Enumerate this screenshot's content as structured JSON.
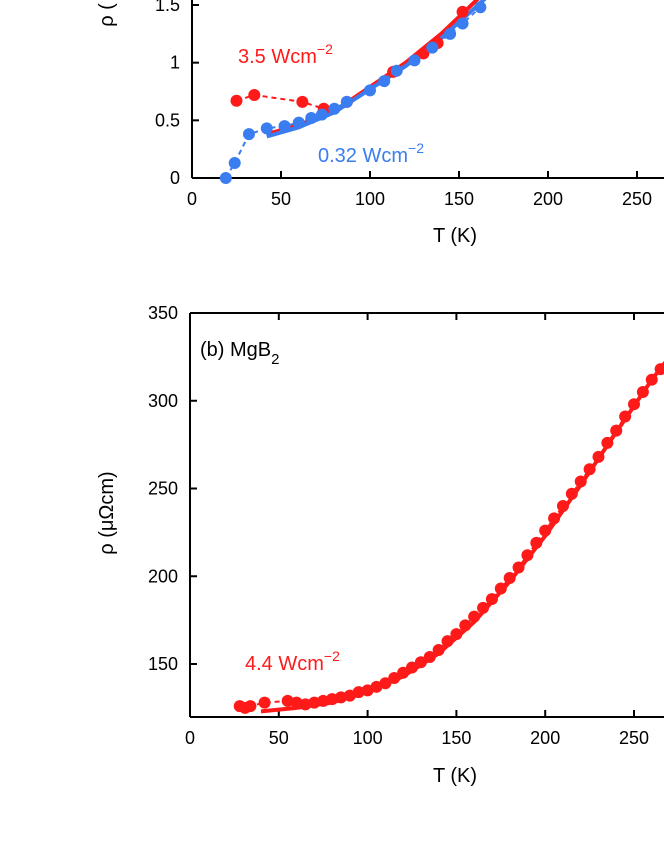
{
  "colors": {
    "axis": "#000000",
    "red": "#ff1a1a",
    "blue": "#3a7df0"
  },
  "chart_data": [
    {
      "type": "scatter",
      "panel": "a",
      "title": "",
      "xlabel": "T (K)",
      "ylabel": "ρ (",
      "xlim": [
        0,
        260
      ],
      "ylim": [
        0,
        1.5
      ],
      "x_ticks": [
        0,
        50,
        100,
        150,
        200,
        250
      ],
      "x_tick_labels": [
        "0",
        "50",
        "100",
        "150",
        "200",
        "250"
      ],
      "y_ticks": [
        0,
        0.5,
        1,
        1.5
      ],
      "y_tick_labels": [
        "0",
        "0.5",
        "1",
        "1.5"
      ],
      "series": [
        {
          "name": "3.5 Wcm−2",
          "label_main": "3.5 Wcm",
          "label_sup": "−2",
          "color": "red",
          "x": [
            25,
            35,
            62,
            74,
            87,
            113,
            130,
            138,
            152
          ],
          "y": [
            0.67,
            0.72,
            0.66,
            0.6,
            0.66,
            0.92,
            1.08,
            1.17,
            1.44
          ],
          "fit_x": [
            42,
            60,
            80,
            100,
            120,
            140,
            155,
            165
          ],
          "fit_y": [
            0.38,
            0.46,
            0.58,
            0.79,
            1.0,
            1.25,
            1.47,
            1.62
          ]
        },
        {
          "name": "0.32 Wcm−2",
          "label_main": "0.32 Wcm",
          "label_sup": "−2",
          "color": "blue",
          "x": [
            19,
            24,
            32,
            42,
            52,
            60,
            67,
            73,
            80,
            87,
            100,
            108,
            115,
            125,
            135,
            145,
            152,
            162
          ],
          "y": [
            0.0,
            0.13,
            0.38,
            0.43,
            0.45,
            0.48,
            0.52,
            0.55,
            0.6,
            0.66,
            0.76,
            0.84,
            0.93,
            1.02,
            1.13,
            1.25,
            1.34,
            1.48
          ],
          "fit_x": [
            42,
            60,
            80,
            100,
            120,
            140,
            155,
            165
          ],
          "fit_y": [
            0.36,
            0.44,
            0.57,
            0.77,
            0.97,
            1.21,
            1.42,
            1.56
          ]
        }
      ]
    },
    {
      "type": "scatter",
      "panel": "b",
      "title_main": "(b) MgB",
      "title_sub": "2",
      "xlabel": "T (K)",
      "ylabel": "ρ (μΩcm)",
      "xlim": [
        0,
        270
      ],
      "ylim": [
        120,
        350
      ],
      "x_ticks": [
        0,
        50,
        100,
        150,
        200,
        250
      ],
      "x_tick_labels": [
        "0",
        "50",
        "100",
        "150",
        "200",
        "250"
      ],
      "y_ticks": [
        150,
        200,
        250,
        300,
        350
      ],
      "y_tick_labels": [
        "150",
        "200",
        "250",
        "300",
        "350"
      ],
      "series": [
        {
          "name": "4.4 Wcm−2",
          "label_main": "4.4 Wcm",
          "label_sup": "−2",
          "color": "red",
          "x": [
            28,
            31,
            34,
            42,
            55,
            60,
            65,
            70,
            75,
            80,
            85,
            90,
            95,
            100,
            105,
            110,
            115,
            120,
            125,
            130,
            135,
            140,
            145,
            150,
            155,
            160,
            165,
            170,
            175,
            180,
            185,
            190,
            195,
            200,
            205,
            210,
            215,
            220,
            225,
            230,
            235,
            240,
            245,
            250,
            255,
            260,
            265,
            270
          ],
          "y": [
            126,
            125,
            126,
            128,
            129,
            128,
            127,
            128,
            129,
            130,
            131,
            132,
            134,
            135,
            137,
            139,
            142,
            145,
            148,
            151,
            154,
            158,
            163,
            167,
            172,
            177,
            182,
            187,
            193,
            199,
            205,
            212,
            219,
            226,
            233,
            240,
            247,
            254,
            261,
            268,
            276,
            283,
            291,
            298,
            305,
            312,
            318,
            322
          ],
          "fit_x": [
            40,
            60,
            80,
            100,
            120,
            140,
            160,
            180,
            200,
            220,
            240,
            260,
            270
          ],
          "fit_y": [
            123,
            125,
            128,
            134,
            143,
            156,
            174,
            197,
            223,
            252,
            282,
            312,
            325
          ]
        }
      ]
    }
  ]
}
